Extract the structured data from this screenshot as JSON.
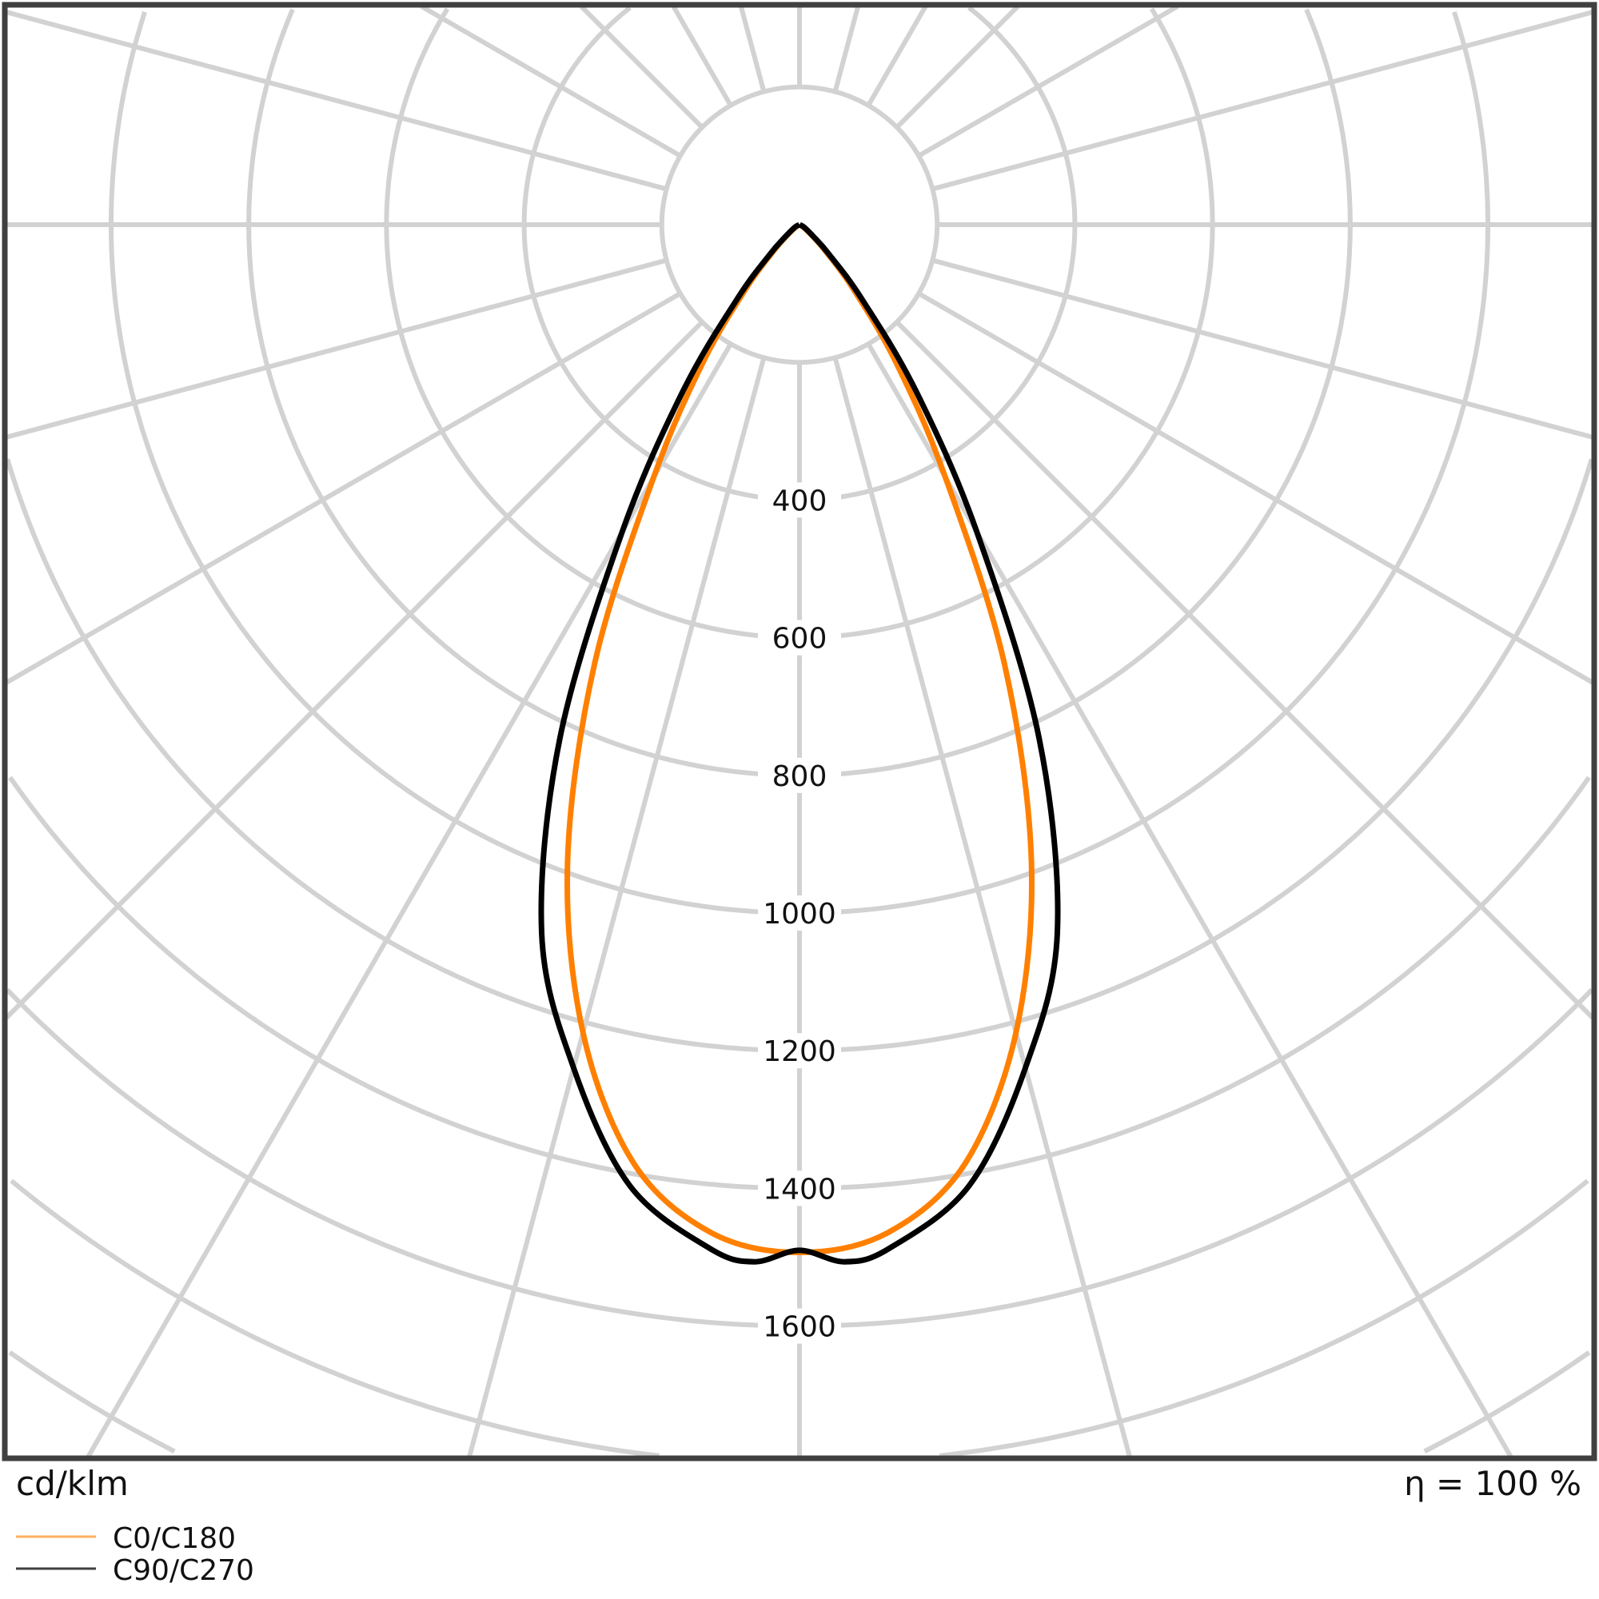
{
  "chart_data": {
    "type": "polar-line",
    "unit_label": "cd/klm",
    "efficiency_label": "η = 100 %",
    "radial_ticks": [
      200,
      400,
      600,
      800,
      1000,
      1200,
      1400,
      1600,
      1800,
      2000,
      2200
    ],
    "radial_tick_labels": [
      "400",
      "600",
      "800",
      "1000",
      "1200",
      "1400",
      "1600"
    ],
    "angle_grid_step_deg": 15,
    "grid": true,
    "legend_placement": "bottom-left",
    "series": [
      {
        "name": "C0/C180",
        "color": "#ff8000",
        "angles_deg": [
          0,
          5,
          10,
          15,
          20,
          25,
          30,
          35,
          40,
          45,
          50,
          60,
          90
        ],
        "values": [
          1493,
          1470,
          1385,
          1215,
          985,
          705,
          424,
          245,
          120,
          50,
          20,
          5,
          0
        ]
      },
      {
        "name": "C90/C270",
        "color": "#000000",
        "angles_deg": [
          0,
          2.5,
          5,
          10,
          15,
          20,
          25,
          30,
          35,
          40,
          45,
          50,
          60,
          90
        ],
        "values": [
          1490,
          1508,
          1493,
          1418,
          1268,
          1095,
          824,
          515,
          295,
          140,
          60,
          25,
          8,
          0
        ]
      }
    ]
  }
}
